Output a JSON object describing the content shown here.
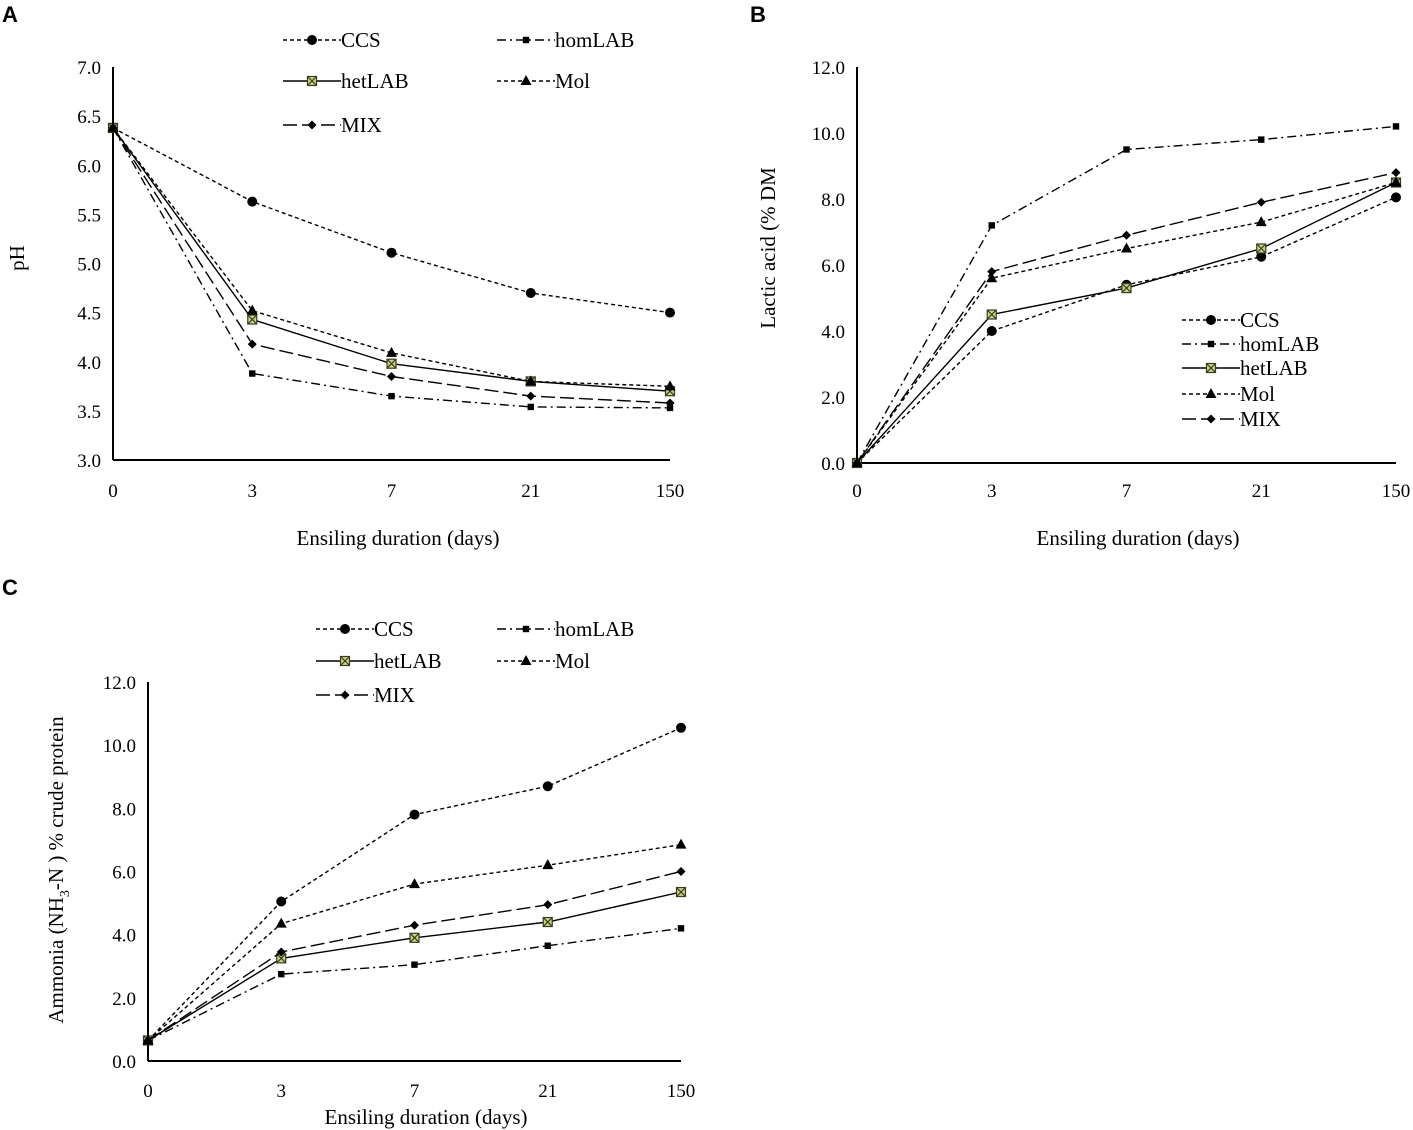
{
  "chart_data": [
    {
      "panel": "A",
      "type": "line",
      "title": "",
      "xlabel": "Ensiling duration (days)",
      "ylabel": "pH",
      "categories": [
        "0",
        "3",
        "7",
        "21",
        "150"
      ],
      "ylim": [
        3.0,
        7.0
      ],
      "yticks": [
        "3.0",
        "3.5",
        "4.0",
        "4.5",
        "5.0",
        "5.5",
        "6.0",
        "6.5",
        "7.0"
      ],
      "legend_position": "top",
      "series": [
        {
          "name": "CCS",
          "style": "dash",
          "marker": "circle",
          "values": [
            6.38,
            5.63,
            5.11,
            4.7,
            4.5
          ]
        },
        {
          "name": "homLAB",
          "style": "dashdot",
          "marker": "square",
          "values": [
            6.38,
            3.88,
            3.65,
            3.54,
            3.53
          ]
        },
        {
          "name": "hetLAB",
          "style": "solid",
          "marker": "xsquare",
          "values": [
            6.38,
            4.43,
            3.98,
            3.8,
            3.7
          ]
        },
        {
          "name": "Mol",
          "style": "dash",
          "marker": "triangle",
          "values": [
            6.38,
            4.52,
            4.09,
            3.8,
            3.75
          ]
        },
        {
          "name": "MIX",
          "style": "longdash",
          "marker": "diamond",
          "values": [
            6.38,
            4.18,
            3.85,
            3.65,
            3.58
          ]
        }
      ]
    },
    {
      "panel": "B",
      "type": "line",
      "title": "",
      "xlabel": "Ensiling duration (days)",
      "ylabel": "Lactic acid (% DM",
      "categories": [
        "0",
        "3",
        "7",
        "21",
        "150"
      ],
      "ylim": [
        0.0,
        12.0
      ],
      "yticks": [
        "0.0",
        "2.0",
        "4.0",
        "6.0",
        "8.0",
        "10.0",
        "12.0"
      ],
      "legend_position": "right-middle",
      "series": [
        {
          "name": "CCS",
          "style": "dash",
          "marker": "circle",
          "values": [
            0.0,
            4.0,
            5.4,
            6.25,
            8.05
          ]
        },
        {
          "name": "homLAB",
          "style": "dashdot",
          "marker": "square",
          "values": [
            0.0,
            7.2,
            9.5,
            9.8,
            10.2
          ]
        },
        {
          "name": "hetLAB",
          "style": "solid",
          "marker": "xsquare",
          "values": [
            0.0,
            4.5,
            5.3,
            6.5,
            8.5
          ]
        },
        {
          "name": "Mol",
          "style": "dash",
          "marker": "triangle",
          "values": [
            0.0,
            5.6,
            6.5,
            7.3,
            8.5
          ]
        },
        {
          "name": "MIX",
          "style": "longdash",
          "marker": "diamond",
          "values": [
            0.0,
            5.8,
            6.9,
            7.9,
            8.8
          ]
        }
      ]
    },
    {
      "panel": "C",
      "type": "line",
      "title": "",
      "xlabel": "Ensiling duration (days)",
      "ylabel_main": "Ammonia (NH",
      "ylabel_sub": "3",
      "ylabel_rest": "-N ) % crude protein",
      "categories": [
        "0",
        "3",
        "7",
        "21",
        "150"
      ],
      "ylim": [
        0.0,
        12.0
      ],
      "yticks": [
        "0.0",
        "2.0",
        "4.0",
        "6.0",
        "8.0",
        "10.0",
        "12.0"
      ],
      "legend_position": "top",
      "series": [
        {
          "name": "CCS",
          "style": "dash",
          "marker": "circle",
          "values": [
            0.65,
            5.05,
            7.8,
            8.7,
            10.55
          ]
        },
        {
          "name": "homLAB",
          "style": "dashdot",
          "marker": "square",
          "values": [
            0.65,
            2.75,
            3.05,
            3.65,
            4.2
          ]
        },
        {
          "name": "hetLAB",
          "style": "solid",
          "marker": "xsquare",
          "values": [
            0.65,
            3.25,
            3.9,
            4.4,
            5.35
          ]
        },
        {
          "name": "Mol",
          "style": "dash",
          "marker": "triangle",
          "values": [
            0.65,
            4.35,
            5.6,
            6.2,
            6.85
          ]
        },
        {
          "name": "MIX",
          "style": "longdash",
          "marker": "diamond",
          "values": [
            0.65,
            3.45,
            4.3,
            4.95,
            6.0
          ]
        }
      ]
    }
  ]
}
